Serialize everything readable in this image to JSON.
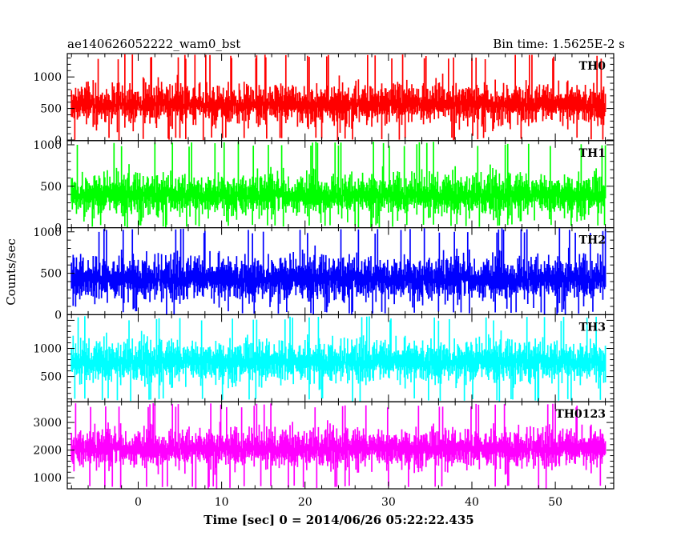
{
  "header": {
    "title": "ae140626052222_wam0_bst",
    "bin_time": "Bin time: 1.5625E-2 s"
  },
  "colors": {
    "axis": "#000000",
    "background": "#ffffff"
  },
  "chart_data": {
    "type": "line",
    "xlabel": "Time [sec] 0 = 2014/06/26 05:22:22.435",
    "ylabel": "Counts/sec",
    "xlim": [
      -8.5,
      57
    ],
    "x_ticks": [
      0,
      10,
      20,
      30,
      40,
      50
    ],
    "x_data_range": [
      -8.0,
      56.0
    ],
    "bin_time_s": 0.015625,
    "panels": [
      {
        "name": "TH0",
        "color": "#ff0000",
        "ylim": [
          -10,
          1370
        ],
        "yticks": [
          0,
          500,
          1000
        ],
        "baseline": 560,
        "noise": 330,
        "spike": 1360
      },
      {
        "name": "TH1",
        "color": "#00ff00",
        "ylim": [
          0,
          1050
        ],
        "yticks": [
          0,
          500,
          1000
        ],
        "baseline": 390,
        "noise": 270,
        "spike": 1040
      },
      {
        "name": "TH2",
        "color": "#0000ff",
        "ylim": [
          0,
          1050
        ],
        "yticks": [
          0,
          500,
          1000
        ],
        "baseline": 430,
        "noise": 290,
        "spike": 1045
      },
      {
        "name": "TH3",
        "color": "#00ffff",
        "ylim": [
          50,
          1600
        ],
        "yticks": [
          500,
          1000
        ],
        "baseline": 760,
        "noise": 400,
        "spike": 1580
      },
      {
        "name": "TH0123",
        "color": "#ff00ff",
        "ylim": [
          600,
          3750
        ],
        "yticks": [
          1000,
          2000,
          3000
        ],
        "baseline": 2050,
        "noise": 750,
        "spike": 3700
      }
    ]
  }
}
